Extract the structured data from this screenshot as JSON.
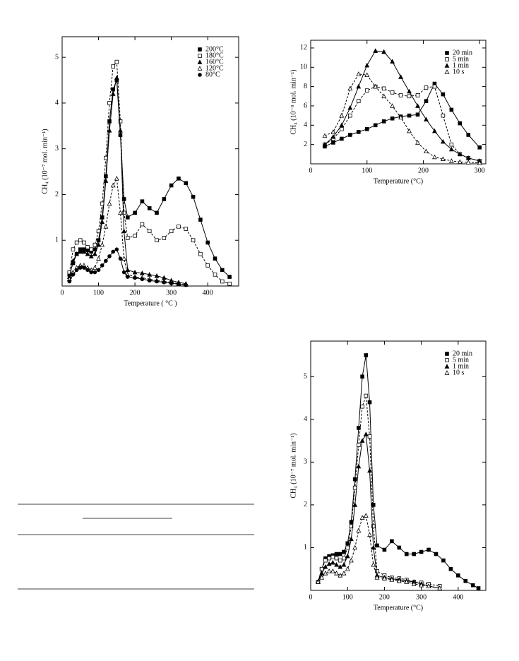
{
  "chart_data": [
    {
      "type": "line",
      "xlabel": "Temperature ( °C )",
      "ylabel": "CH₄ (10⁻⁷ mol. min⁻¹)",
      "xlim": [
        0,
        485
      ],
      "ylim": [
        0,
        5.45
      ],
      "xticks": [
        0,
        100,
        200,
        300,
        400
      ],
      "yticks": [
        1,
        2,
        3,
        4,
        5
      ],
      "legend": "top-right",
      "series": [
        {
          "name": "200°C",
          "color": "#000000",
          "marker": "filled-square",
          "dashed": false,
          "x": [
            20,
            30,
            40,
            50,
            60,
            70,
            80,
            90,
            100,
            110,
            120,
            130,
            140,
            150,
            160,
            170,
            180,
            200,
            220,
            240,
            260,
            280,
            300,
            320,
            340,
            360,
            380,
            400,
            420,
            440,
            460
          ],
          "values": [
            0.25,
            0.5,
            0.7,
            0.8,
            0.8,
            0.78,
            0.75,
            0.8,
            1.0,
            1.5,
            2.4,
            3.6,
            4.3,
            4.5,
            3.3,
            1.9,
            1.5,
            1.6,
            1.85,
            1.7,
            1.6,
            1.9,
            2.2,
            2.35,
            2.25,
            1.95,
            1.45,
            0.95,
            0.6,
            0.35,
            0.2
          ]
        },
        {
          "name": "180°C",
          "color": "#000000",
          "marker": "open-square",
          "dashed": true,
          "x": [
            20,
            30,
            40,
            50,
            60,
            70,
            80,
            90,
            100,
            110,
            120,
            130,
            140,
            150,
            160,
            170,
            180,
            200,
            220,
            240,
            260,
            280,
            300,
            320,
            340,
            360,
            380,
            400,
            420,
            440,
            460
          ],
          "values": [
            0.3,
            0.8,
            0.95,
            1.0,
            0.95,
            0.85,
            0.8,
            0.9,
            1.2,
            1.8,
            2.8,
            4.0,
            4.8,
            4.9,
            3.6,
            1.6,
            1.05,
            1.1,
            1.35,
            1.2,
            1.0,
            1.05,
            1.2,
            1.3,
            1.25,
            1.0,
            0.7,
            0.45,
            0.25,
            0.1,
            0.05
          ]
        },
        {
          "name": "160°C",
          "color": "#000000",
          "marker": "filled-triangle",
          "dashed": false,
          "x": [
            20,
            30,
            40,
            50,
            60,
            70,
            80,
            90,
            100,
            110,
            120,
            130,
            140,
            150,
            160,
            170,
            180,
            200,
            220,
            240,
            260,
            280,
            300,
            320,
            340
          ],
          "values": [
            0.2,
            0.55,
            0.7,
            0.75,
            0.75,
            0.7,
            0.65,
            0.7,
            0.9,
            1.4,
            2.3,
            3.4,
            4.2,
            4.55,
            3.4,
            1.2,
            0.35,
            0.3,
            0.28,
            0.25,
            0.22,
            0.18,
            0.12,
            0.08,
            0.05
          ]
        },
        {
          "name": "120°C",
          "color": "#000000",
          "marker": "open-triangle",
          "dashed": true,
          "x": [
            20,
            30,
            40,
            50,
            60,
            70,
            80,
            90,
            100,
            110,
            120,
            130,
            140,
            150,
            160,
            170,
            180,
            200,
            220,
            240,
            260,
            280,
            300,
            320,
            340
          ],
          "values": [
            0.15,
            0.3,
            0.4,
            0.45,
            0.45,
            0.4,
            0.35,
            0.4,
            0.6,
            0.9,
            1.3,
            1.8,
            2.2,
            2.35,
            1.6,
            0.6,
            0.25,
            0.2,
            0.18,
            0.15,
            0.12,
            0.1,
            0.08,
            0.05,
            0.03
          ]
        },
        {
          "name": "80°C",
          "color": "#000000",
          "marker": "filled-circle",
          "dashed": false,
          "x": [
            20,
            30,
            40,
            50,
            60,
            70,
            80,
            90,
            100,
            110,
            120,
            130,
            140,
            150,
            160,
            170,
            180,
            200,
            220,
            240,
            260,
            280,
            300,
            320,
            340
          ],
          "values": [
            0.1,
            0.25,
            0.35,
            0.4,
            0.4,
            0.35,
            0.3,
            0.3,
            0.35,
            0.45,
            0.55,
            0.65,
            0.75,
            0.8,
            0.6,
            0.3,
            0.2,
            0.18,
            0.15,
            0.12,
            0.1,
            0.08,
            0.06,
            0.04,
            0.02
          ]
        }
      ]
    },
    {
      "type": "line",
      "xlabel": "Temperature (°C)",
      "ylabel": "CH₄ (10⁻⁸ mol. min⁻¹)",
      "xlim": [
        0,
        311
      ],
      "ylim": [
        0,
        12.8
      ],
      "xticks": [
        0,
        100,
        200,
        300
      ],
      "yticks": [
        2,
        4,
        6,
        8,
        10,
        12
      ],
      "legend": "top-right",
      "series": [
        {
          "name": "20 min",
          "color": "#000000",
          "marker": "filled-square",
          "dashed": false,
          "x": [
            25,
            40,
            55,
            70,
            85,
            100,
            115,
            130,
            145,
            160,
            175,
            190,
            205,
            220,
            235,
            250,
            265,
            280,
            300
          ],
          "values": [
            1.8,
            2.2,
            2.6,
            3.0,
            3.3,
            3.6,
            4.0,
            4.4,
            4.7,
            4.9,
            5.0,
            5.1,
            6.5,
            8.3,
            7.2,
            5.6,
            4.2,
            3.0,
            1.7
          ]
        },
        {
          "name": "5 min",
          "color": "#000000",
          "marker": "open-square",
          "dashed": true,
          "x": [
            25,
            40,
            55,
            70,
            85,
            100,
            115,
            130,
            145,
            160,
            175,
            190,
            205,
            220,
            235,
            250,
            265,
            280,
            300
          ],
          "values": [
            2.0,
            2.6,
            3.6,
            5.0,
            6.5,
            7.6,
            8.0,
            7.8,
            7.4,
            7.1,
            7.0,
            7.1,
            7.9,
            8.0,
            5.0,
            2.0,
            1.0,
            0.6,
            0.3
          ]
        },
        {
          "name": "1 min",
          "color": "#000000",
          "marker": "filled-triangle",
          "dashed": false,
          "x": [
            25,
            40,
            55,
            70,
            85,
            100,
            115,
            130,
            145,
            160,
            175,
            190,
            205,
            220,
            235,
            250,
            265,
            280,
            300
          ],
          "values": [
            2.0,
            2.8,
            4.0,
            5.8,
            8.0,
            10.2,
            11.7,
            11.6,
            10.6,
            9.0,
            7.5,
            6.0,
            4.6,
            3.4,
            2.3,
            1.5,
            1.0,
            0.6,
            0.3
          ]
        },
        {
          "name": "10 s",
          "color": "#000000",
          "marker": "open-triangle",
          "dashed": true,
          "x": [
            25,
            40,
            55,
            70,
            85,
            100,
            115,
            130,
            145,
            160,
            175,
            190,
            205,
            220,
            235,
            250,
            265,
            280,
            300
          ],
          "values": [
            2.9,
            3.3,
            5.0,
            7.8,
            9.3,
            9.2,
            8.0,
            7.0,
            6.0,
            4.8,
            3.4,
            2.2,
            1.3,
            0.7,
            0.5,
            0.3,
            0.2,
            0.15,
            0.1
          ]
        }
      ]
    },
    {
      "type": "line",
      "xlabel": "Temperature (°C)",
      "ylabel": "CH₄ (10⁻⁷ mol. min⁻¹)",
      "xlim": [
        0,
        475
      ],
      "ylim": [
        0,
        5.83
      ],
      "xticks": [
        0,
        100,
        200,
        300,
        400
      ],
      "yticks": [
        1,
        2,
        3,
        4,
        5
      ],
      "legend": "top-right",
      "series": [
        {
          "name": "20 min",
          "color": "#000000",
          "marker": "filled-square",
          "dashed": false,
          "x": [
            20,
            30,
            40,
            50,
            60,
            70,
            80,
            90,
            100,
            110,
            120,
            130,
            140,
            150,
            160,
            170,
            180,
            200,
            220,
            240,
            260,
            280,
            300,
            320,
            340,
            360,
            380,
            400,
            420,
            440,
            455
          ],
          "values": [
            0.2,
            0.5,
            0.75,
            0.8,
            0.82,
            0.85,
            0.85,
            0.9,
            1.1,
            1.6,
            2.6,
            3.8,
            5.0,
            5.5,
            4.4,
            2.0,
            1.05,
            0.95,
            1.15,
            1.0,
            0.85,
            0.85,
            0.9,
            0.95,
            0.85,
            0.7,
            0.5,
            0.35,
            0.22,
            0.12,
            0.05
          ]
        },
        {
          "name": "5 min",
          "color": "#000000",
          "marker": "open-square",
          "dashed": true,
          "x": [
            20,
            30,
            40,
            50,
            60,
            70,
            80,
            90,
            100,
            110,
            120,
            130,
            140,
            150,
            160,
            170,
            180,
            200,
            220,
            240,
            260,
            280,
            300,
            320,
            350
          ],
          "values": [
            0.2,
            0.5,
            0.7,
            0.75,
            0.78,
            0.75,
            0.7,
            0.75,
            1.0,
            1.5,
            2.4,
            3.4,
            4.3,
            4.55,
            3.6,
            1.5,
            0.45,
            0.35,
            0.3,
            0.28,
            0.25,
            0.2,
            0.18,
            0.15,
            0.1
          ]
        },
        {
          "name": "1 min",
          "color": "#000000",
          "marker": "filled-triangle",
          "dashed": false,
          "x": [
            20,
            30,
            40,
            50,
            60,
            70,
            80,
            90,
            100,
            110,
            120,
            130,
            140,
            150,
            160,
            170,
            180,
            200,
            220,
            240,
            260,
            280,
            300,
            320,
            350
          ],
          "values": [
            0.2,
            0.4,
            0.55,
            0.62,
            0.65,
            0.6,
            0.55,
            0.6,
            0.8,
            1.2,
            2.0,
            2.9,
            3.5,
            3.65,
            2.8,
            1.0,
            0.35,
            0.3,
            0.27,
            0.25,
            0.22,
            0.2,
            0.15,
            0.1,
            0.05
          ]
        },
        {
          "name": "10 s",
          "color": "#000000",
          "marker": "open-triangle",
          "dashed": true,
          "x": [
            20,
            30,
            40,
            50,
            60,
            70,
            80,
            90,
            100,
            110,
            120,
            130,
            140,
            150,
            160,
            170,
            180,
            200,
            220,
            240,
            260,
            280,
            300,
            320,
            350
          ],
          "values": [
            0.2,
            0.3,
            0.4,
            0.45,
            0.45,
            0.4,
            0.35,
            0.4,
            0.5,
            0.7,
            1.0,
            1.4,
            1.7,
            1.75,
            1.3,
            0.6,
            0.3,
            0.28,
            0.25,
            0.22,
            0.2,
            0.15,
            0.12,
            0.1,
            0.05
          ]
        }
      ]
    }
  ]
}
